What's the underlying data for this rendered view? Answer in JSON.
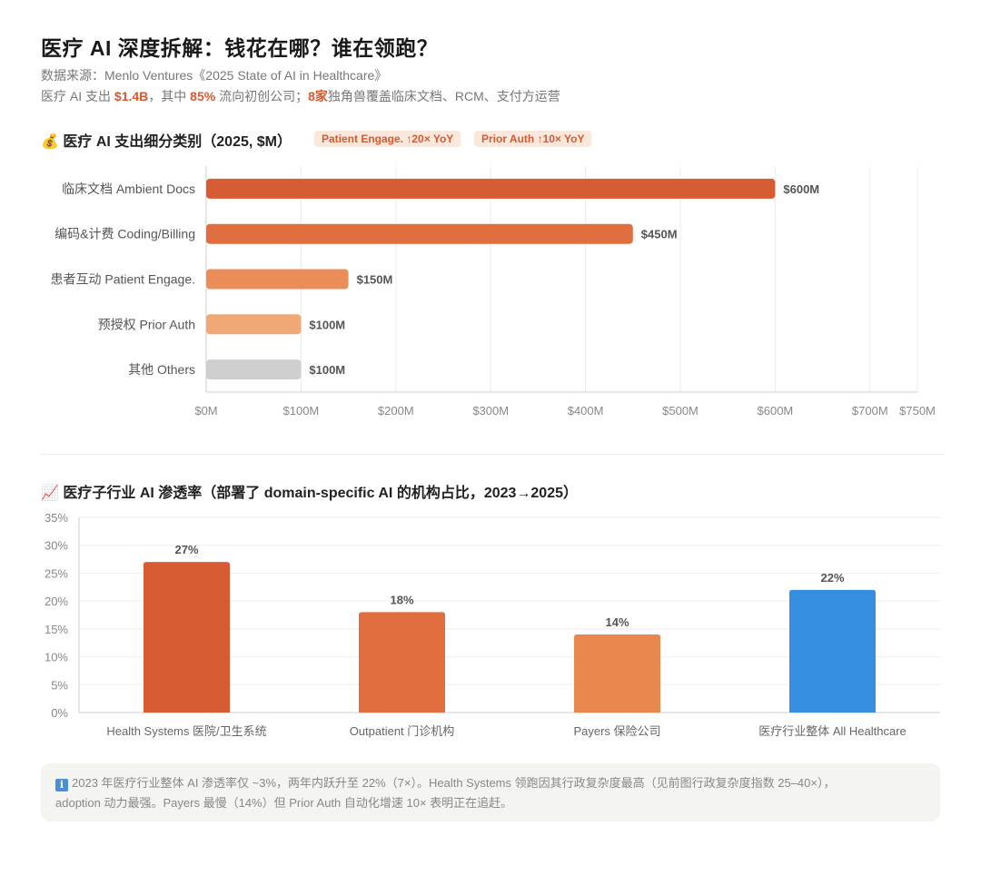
{
  "header": {
    "title": "医疗 AI 深度拆解：钱花在哪？谁在领跑？",
    "source": "数据来源：Menlo Ventures《2025 State of AI in Healthcare》",
    "summary": {
      "p1": "医疗 AI 支出 ",
      "v1": "$1.4B",
      "p2": "，其中 ",
      "v2": "85%",
      "p3": " 流向初创公司；",
      "v3": "8家",
      "p4": "独角兽覆盖临床文档、RCM、支付方运营"
    }
  },
  "section1": {
    "icon": "money-bag-icon",
    "emoji": "💰",
    "title": "医疗 AI 支出细分类别（2025, $M）",
    "badges": [
      "Patient Engage. ↑20× YoY",
      "Prior Auth ↑10× YoY"
    ]
  },
  "section2": {
    "icon": "chart-increasing-icon",
    "emoji": "📈",
    "title": "医疗子行业 AI 渗透率（部署了 domain-specific AI 的机构占比，2023→2025）"
  },
  "note": {
    "icon": "info-icon",
    "line1": "2023 年医疗行业整体 AI 渗透率仅 ~3%，两年内跃升至 22%（7×）。Health Systems 领跑因其行政复杂度最高（见前图行政复杂度指数 25–40×），",
    "line2": "adoption 动力最强。Payers 最慢（14%）但 Prior Auth 自动化增速 10× 表明正在追赶。"
  },
  "colors": {
    "accent": "#d35a31",
    "bar1": "#d65c33",
    "bar2": "#e06e3f",
    "bar3": "#ea8d58",
    "bar4": "#f0a876",
    "bar5": "#cfcfcf",
    "blue": "#358ee0"
  },
  "chart_data": [
    {
      "type": "bar",
      "orientation": "horizontal",
      "categories": [
        "临床文档 Ambient Docs",
        "编码&计费 Coding/Billing",
        "患者互动 Patient Engage.",
        "预授权 Prior Auth",
        "其他 Others"
      ],
      "values": [
        600,
        450,
        150,
        100,
        100
      ],
      "value_labels": [
        "$600M",
        "$450M",
        "$150M",
        "$100M",
        "$100M"
      ],
      "colors": [
        "#d65c33",
        "#e06e3f",
        "#ea8d58",
        "#f0a876",
        "#cfcfcf"
      ],
      "xlim": [
        0,
        750
      ],
      "xticks": [
        0,
        100,
        200,
        300,
        400,
        500,
        600,
        700,
        750
      ],
      "xtick_labels": [
        "$0M",
        "$100M",
        "$200M",
        "$300M",
        "$400M",
        "$500M",
        "$600M",
        "$700M",
        "$750M"
      ],
      "grid": true
    },
    {
      "type": "bar",
      "categories": [
        "Health Systems 医院/卫生系统",
        "Outpatient 门诊机构",
        "Payers 保险公司",
        "医疗行业整体 All Healthcare"
      ],
      "values": [
        27,
        18,
        14,
        22
      ],
      "value_labels": [
        "27%",
        "18%",
        "14%",
        "22%"
      ],
      "colors": [
        "#d65c33",
        "#e06e3f",
        "#e8874e",
        "#358ee0"
      ],
      "ylim": [
        0,
        35
      ],
      "yticks": [
        0,
        5,
        10,
        15,
        20,
        25,
        30,
        35
      ],
      "ytick_labels": [
        "0%",
        "5%",
        "10%",
        "15%",
        "20%",
        "25%",
        "30%",
        "35%"
      ],
      "grid": true
    }
  ]
}
